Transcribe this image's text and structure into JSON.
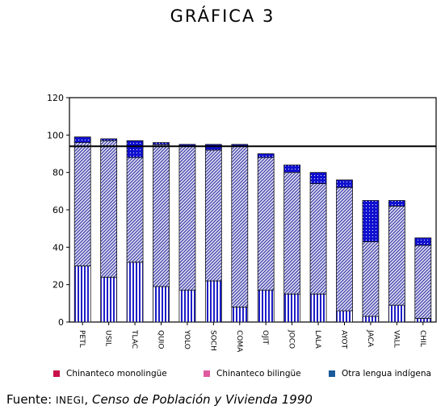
{
  "title": "GRÁFICA 3",
  "chart_data": {
    "type": "bar",
    "stacked": true,
    "categories": [
      "PETL",
      "USIL",
      "TLAC",
      "QUIO",
      "YOLO",
      "SOCH",
      "COMA",
      "OJIT",
      "JOCO",
      "LALA",
      "AYOT",
      "JACA",
      "VALL",
      "CHIL"
    ],
    "series": [
      {
        "name": "Chinanteco monolingüe",
        "values": [
          30,
          24,
          32,
          19,
          17,
          22,
          8,
          17,
          15,
          15,
          6,
          3,
          9,
          2
        ],
        "color": "#1e1ec8",
        "legend_color": "#c8104a"
      },
      {
        "name": "Chinanteco bilingüe",
        "values": [
          66,
          73,
          56,
          76,
          77,
          70,
          86,
          71,
          65,
          59,
          66,
          40,
          53,
          39
        ],
        "color": "#5a5ab8",
        "legend_color": "#e05aa0"
      },
      {
        "name": "Otra lengua indígena",
        "values": [
          3,
          1,
          9,
          1,
          1,
          3,
          1,
          2,
          4,
          6,
          4,
          22,
          3,
          4
        ],
        "color": "#1010d0",
        "legend_color": "#1a5a9a"
      }
    ],
    "reference_line": 94,
    "ylim": [
      0,
      120
    ],
    "yticks": [
      0,
      20,
      40,
      60,
      80,
      100,
      120
    ],
    "legend_position": "bottom"
  },
  "source": {
    "prefix": "Fuente: ",
    "org": "INEGI",
    "sep": ", ",
    "publication": "Censo de Población y Vivienda 1990"
  }
}
